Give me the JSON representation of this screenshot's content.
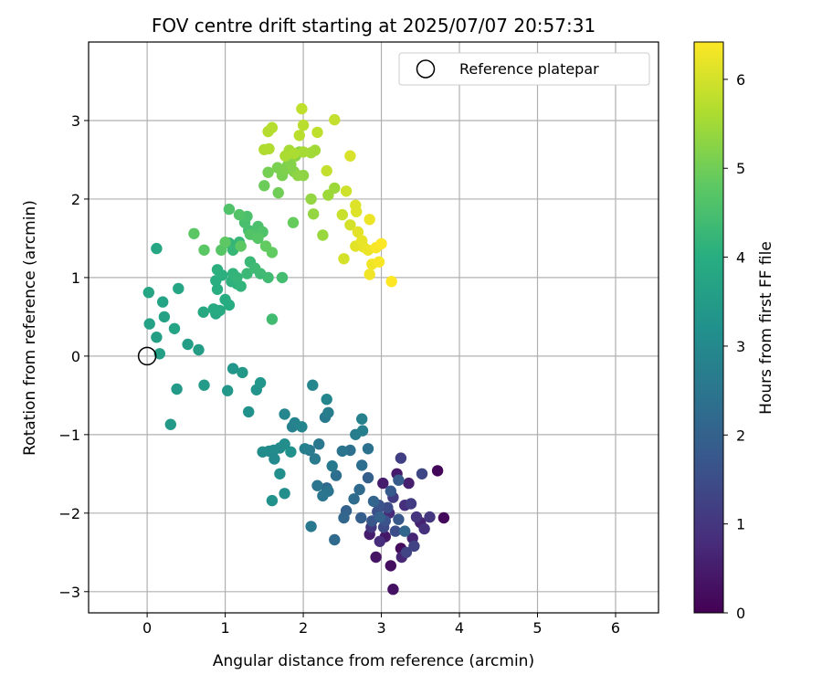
{
  "chart_data": {
    "type": "scatter",
    "title": "FOV centre drift starting at 2025/07/07 20:57:31",
    "xlabel": "Angular distance from reference (arcmin)",
    "ylabel": "Rotation from reference (arcmin)",
    "xlim": [
      -0.75,
      6.55
    ],
    "ylim": [
      -3.27,
      4.0
    ],
    "xticks": [
      0,
      1,
      2,
      3,
      4,
      5,
      6
    ],
    "yticks": [
      -3,
      -2,
      -1,
      0,
      1,
      2,
      3
    ],
    "grid": true,
    "legend": {
      "position": "top-right",
      "entries": [
        "Reference platepar"
      ]
    },
    "reference_point": {
      "x": 0,
      "y": 0,
      "label": "Reference platepar"
    },
    "colorbar": {
      "label": "Hours from first FF file",
      "colormap": "viridis",
      "range": [
        0,
        6.42
      ],
      "ticks": [
        0,
        1,
        2,
        3,
        4,
        5,
        6
      ]
    },
    "points": [
      [
        3.72,
        -1.46,
        0.1
      ],
      [
        3.8,
        -2.06,
        0.15
      ],
      [
        3.25,
        -2.45,
        0.2
      ],
      [
        3.15,
        -2.97,
        0.3
      ],
      [
        2.93,
        -2.56,
        0.35
      ],
      [
        3.12,
        -2.67,
        0.25
      ],
      [
        3.05,
        -2.3,
        0.4
      ],
      [
        2.85,
        -2.27,
        0.5
      ],
      [
        3.2,
        -1.5,
        0.45
      ],
      [
        3.35,
        -1.62,
        0.55
      ],
      [
        3.5,
        -2.12,
        0.6
      ],
      [
        3.4,
        -2.32,
        0.65
      ],
      [
        3.26,
        -2.56,
        0.7
      ],
      [
        3.1,
        -2.0,
        0.75
      ],
      [
        2.98,
        -2.36,
        0.8
      ],
      [
        3.02,
        -1.62,
        0.5
      ],
      [
        3.3,
        -1.9,
        0.85
      ],
      [
        3.55,
        -2.2,
        0.9
      ],
      [
        3.45,
        -2.05,
        0.95
      ],
      [
        3.62,
        -2.05,
        1.0
      ],
      [
        2.87,
        -2.18,
        1.05
      ],
      [
        3.15,
        -1.8,
        1.1
      ],
      [
        3.25,
        -1.3,
        1.2
      ],
      [
        3.38,
        -1.88,
        1.15
      ],
      [
        3.42,
        -2.42,
        1.25
      ],
      [
        3.32,
        -2.5,
        1.3
      ],
      [
        3.52,
        -1.5,
        1.35
      ],
      [
        3.03,
        -2.18,
        1.4
      ],
      [
        3.08,
        -1.93,
        1.45
      ],
      [
        3.18,
        -2.23,
        1.5
      ],
      [
        2.95,
        -1.98,
        1.55
      ],
      [
        3.05,
        -2.1,
        1.6
      ],
      [
        2.97,
        -1.9,
        1.65
      ],
      [
        2.88,
        -2.1,
        1.7
      ],
      [
        3.22,
        -2.08,
        1.75
      ],
      [
        3.12,
        -1.72,
        1.8
      ],
      [
        3.22,
        -1.58,
        1.85
      ],
      [
        2.74,
        -2.06,
        1.9
      ],
      [
        2.83,
        -1.55,
        1.95
      ],
      [
        2.98,
        -2.05,
        2.0
      ],
      [
        2.9,
        -1.85,
        2.05
      ],
      [
        3.3,
        -2.23,
        2.1
      ],
      [
        2.55,
        -1.97,
        2.0
      ],
      [
        2.3,
        -1.68,
        2.15
      ],
      [
        2.52,
        -2.06,
        2.1
      ],
      [
        2.4,
        -2.34,
        2.2
      ],
      [
        2.72,
        -1.7,
        2.2
      ],
      [
        2.65,
        -1.82,
        2.25
      ],
      [
        2.42,
        -1.52,
        2.3
      ],
      [
        2.6,
        -1.2,
        2.35
      ],
      [
        2.75,
        -1.39,
        2.3
      ],
      [
        2.83,
        -1.18,
        2.4
      ],
      [
        2.5,
        -1.21,
        2.45
      ],
      [
        2.32,
        -1.72,
        2.45
      ],
      [
        2.25,
        -1.78,
        2.5
      ],
      [
        2.18,
        -1.65,
        2.5
      ],
      [
        2.1,
        -2.17,
        2.55
      ],
      [
        2.2,
        -1.12,
        2.55
      ],
      [
        2.37,
        -1.4,
        2.6
      ],
      [
        2.28,
        -0.78,
        2.6
      ],
      [
        2.08,
        -1.2,
        2.65
      ],
      [
        2.15,
        -1.31,
        2.65
      ],
      [
        2.32,
        -0.72,
        2.7
      ],
      [
        2.67,
        -1.0,
        2.7
      ],
      [
        2.76,
        -0.95,
        2.75
      ],
      [
        2.75,
        -0.8,
        2.8
      ],
      [
        2.02,
        -1.18,
        2.75
      ],
      [
        1.86,
        -0.9,
        2.8
      ],
      [
        1.89,
        -0.85,
        2.85
      ],
      [
        1.98,
        -0.9,
        2.9
      ],
      [
        2.3,
        -0.55,
        2.9
      ],
      [
        2.12,
        -0.37,
        2.95
      ],
      [
        1.76,
        -0.74,
        2.95
      ],
      [
        1.62,
        -1.2,
        3.0
      ],
      [
        1.56,
        -1.21,
        3.05
      ],
      [
        1.63,
        -1.31,
        3.0
      ],
      [
        1.48,
        -1.22,
        3.1
      ],
      [
        1.7,
        -1.17,
        3.05
      ],
      [
        1.7,
        -1.5,
        3.15
      ],
      [
        1.76,
        -1.12,
        3.1
      ],
      [
        1.6,
        -1.84,
        3.2
      ],
      [
        1.76,
        -1.75,
        3.15
      ],
      [
        1.84,
        -1.22,
        3.2
      ],
      [
        1.3,
        -0.71,
        3.25
      ],
      [
        1.4,
        -0.43,
        3.3
      ],
      [
        1.45,
        -0.34,
        3.35
      ],
      [
        1.1,
        -0.16,
        3.35
      ],
      [
        1.22,
        -0.21,
        3.4
      ],
      [
        1.03,
        -0.44,
        3.4
      ],
      [
        0.3,
        -0.87,
        3.45
      ],
      [
        0.38,
        -0.42,
        3.45
      ],
      [
        0.73,
        -0.37,
        3.5
      ],
      [
        0.66,
        0.08,
        3.55
      ],
      [
        0.52,
        0.15,
        3.55
      ],
      [
        0.16,
        0.03,
        3.6
      ],
      [
        0.12,
        0.24,
        3.6
      ],
      [
        0.03,
        0.41,
        3.65
      ],
      [
        0.22,
        0.5,
        3.65
      ],
      [
        0.35,
        0.35,
        3.7
      ],
      [
        0.2,
        0.69,
        3.7
      ],
      [
        0.02,
        0.81,
        3.75
      ],
      [
        0.4,
        0.86,
        3.75
      ],
      [
        0.12,
        1.37,
        3.8
      ],
      [
        0.72,
        0.56,
        3.85
      ],
      [
        0.88,
        0.54,
        3.85
      ],
      [
        0.85,
        0.6,
        3.9
      ],
      [
        0.93,
        0.58,
        3.9
      ],
      [
        1.05,
        0.65,
        3.95
      ],
      [
        1.0,
        0.72,
        3.95
      ],
      [
        0.9,
        0.85,
        4.0
      ],
      [
        0.88,
        0.96,
        4.0
      ],
      [
        0.9,
        1.1,
        4.05
      ],
      [
        0.96,
        1.03,
        4.05
      ],
      [
        1.08,
        0.95,
        4.1
      ],
      [
        1.15,
        0.92,
        4.1
      ],
      [
        1.2,
        0.89,
        4.15
      ],
      [
        1.1,
        1.05,
        4.15
      ],
      [
        1.15,
        1.0,
        4.2
      ],
      [
        1.05,
        1.44,
        4.2
      ],
      [
        1.18,
        1.45,
        4.25
      ],
      [
        1.1,
        1.35,
        4.25
      ],
      [
        1.28,
        1.05,
        4.3
      ],
      [
        1.32,
        1.2,
        4.3
      ],
      [
        1.38,
        1.12,
        4.35
      ],
      [
        1.45,
        1.05,
        4.35
      ],
      [
        1.55,
        1.0,
        4.4
      ],
      [
        1.6,
        0.47,
        4.4
      ],
      [
        1.73,
        1.0,
        4.45
      ],
      [
        1.3,
        1.6,
        4.45
      ],
      [
        1.35,
        1.55,
        4.5
      ],
      [
        1.25,
        1.7,
        4.5
      ],
      [
        1.28,
        1.78,
        4.55
      ],
      [
        1.42,
        1.65,
        4.55
      ],
      [
        1.48,
        1.58,
        4.6
      ],
      [
        1.05,
        1.87,
        4.6
      ],
      [
        1.18,
        1.8,
        4.65
      ],
      [
        1.32,
        1.55,
        4.65
      ],
      [
        1.42,
        1.5,
        4.7
      ],
      [
        0.95,
        1.35,
        4.7
      ],
      [
        0.73,
        1.35,
        4.75
      ],
      [
        0.6,
        1.56,
        4.75
      ],
      [
        1.0,
        1.45,
        4.8
      ],
      [
        1.2,
        1.4,
        4.8
      ],
      [
        1.52,
        1.4,
        4.85
      ],
      [
        1.6,
        1.32,
        4.85
      ],
      [
        1.87,
        1.7,
        4.9
      ],
      [
        1.5,
        2.17,
        4.95
      ],
      [
        1.68,
        2.08,
        5.0
      ],
      [
        1.55,
        2.34,
        5.05
      ],
      [
        1.67,
        2.4,
        5.1
      ],
      [
        1.73,
        2.3,
        5.1
      ],
      [
        1.77,
        2.38,
        5.15
      ],
      [
        1.8,
        2.43,
        5.15
      ],
      [
        1.88,
        2.35,
        5.2
      ],
      [
        1.84,
        2.44,
        5.2
      ],
      [
        1.9,
        2.55,
        5.25
      ],
      [
        1.95,
        2.6,
        5.25
      ],
      [
        1.93,
        2.3,
        5.3
      ],
      [
        2.0,
        2.3,
        5.3
      ],
      [
        2.1,
        2.0,
        5.35
      ],
      [
        2.13,
        1.81,
        5.35
      ],
      [
        2.25,
        1.54,
        5.4
      ],
      [
        2.32,
        2.05,
        5.45
      ],
      [
        2.4,
        2.14,
        5.45
      ],
      [
        2.1,
        2.59,
        5.5
      ],
      [
        2.15,
        2.62,
        5.5
      ],
      [
        2.0,
        2.6,
        5.55
      ],
      [
        1.82,
        2.62,
        5.55
      ],
      [
        1.77,
        2.55,
        5.6
      ],
      [
        1.88,
        2.58,
        5.6
      ],
      [
        1.5,
        2.63,
        5.65
      ],
      [
        1.56,
        2.64,
        5.65
      ],
      [
        1.55,
        2.86,
        5.7
      ],
      [
        1.6,
        2.91,
        5.7
      ],
      [
        1.95,
        2.81,
        5.75
      ],
      [
        2.0,
        2.94,
        5.75
      ],
      [
        1.98,
        3.15,
        5.8
      ],
      [
        2.18,
        2.85,
        5.8
      ],
      [
        2.3,
        2.36,
        5.85
      ],
      [
        2.4,
        3.01,
        5.85
      ],
      [
        2.5,
        1.8,
        5.9
      ],
      [
        2.55,
        2.1,
        5.95
      ],
      [
        2.6,
        1.67,
        6.0
      ],
      [
        2.52,
        1.24,
        6.0
      ],
      [
        2.6,
        2.55,
        6.05
      ],
      [
        2.67,
        1.92,
        6.1
      ],
      [
        2.68,
        1.84,
        6.1
      ],
      [
        2.7,
        1.58,
        6.15
      ],
      [
        2.67,
        1.4,
        6.15
      ],
      [
        2.75,
        1.47,
        6.2
      ],
      [
        2.77,
        1.39,
        6.2
      ],
      [
        2.85,
        1.74,
        6.25
      ],
      [
        2.83,
        1.35,
        6.25
      ],
      [
        2.88,
        1.17,
        6.3
      ],
      [
        2.85,
        1.04,
        6.3
      ],
      [
        2.93,
        1.38,
        6.35
      ],
      [
        2.97,
        1.2,
        6.35
      ],
      [
        3.0,
        1.43,
        6.4
      ],
      [
        3.13,
        0.95,
        6.42
      ]
    ]
  }
}
